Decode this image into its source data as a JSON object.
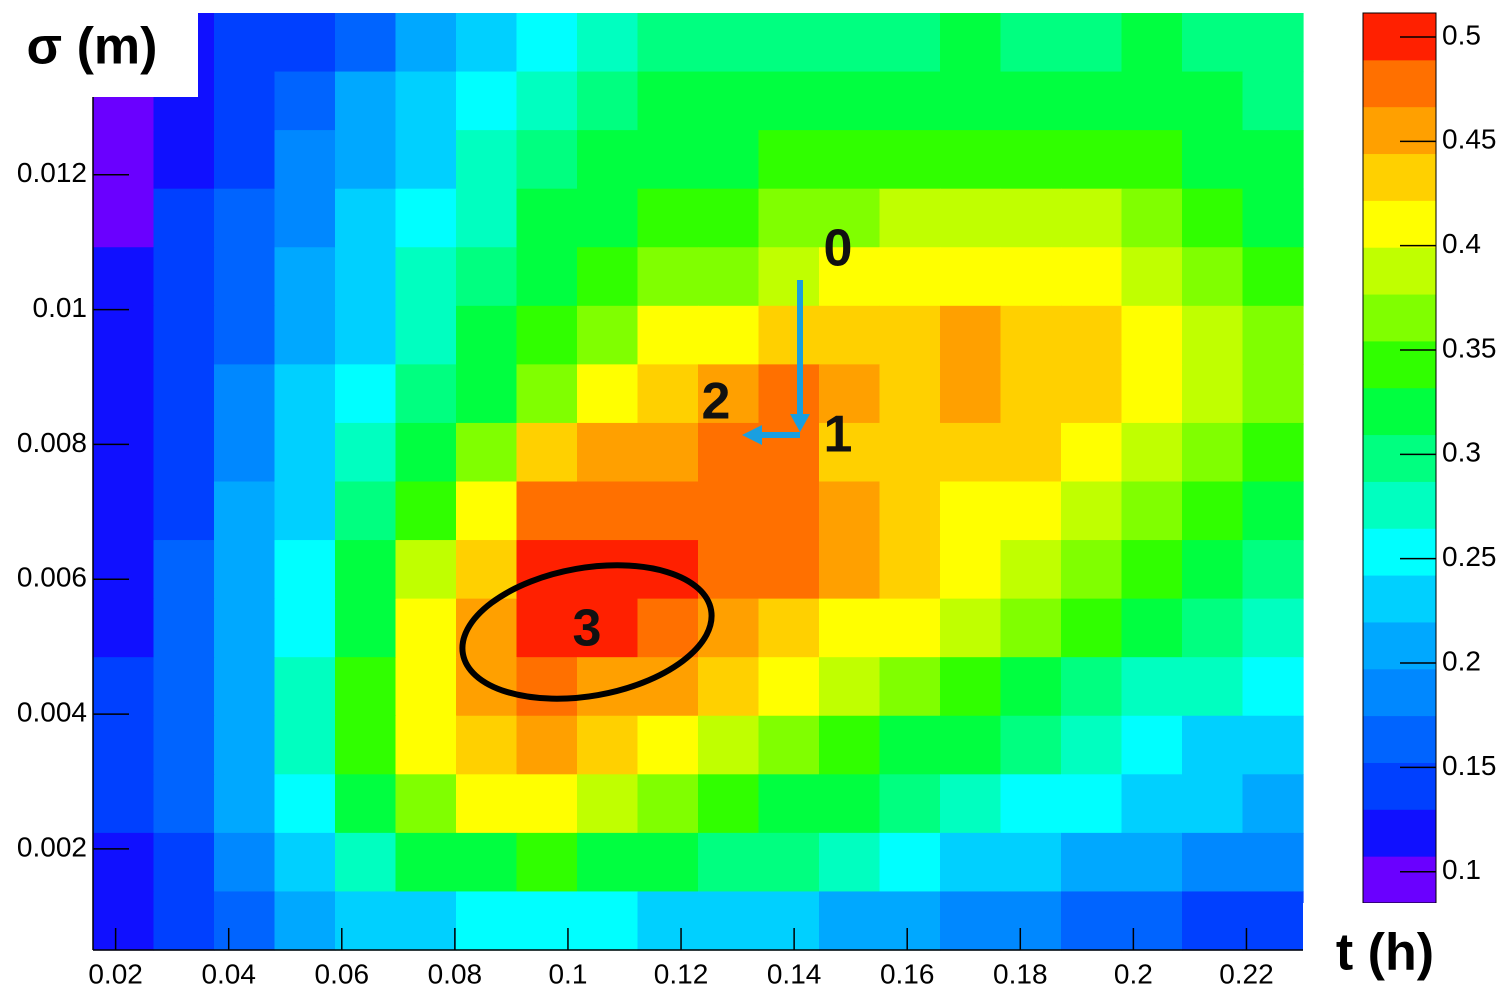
{
  "chart_data": {
    "type": "heatmap",
    "x_label": "t (h)",
    "y_label": "σ (m)",
    "xlim": [
      0.016,
      0.23
    ],
    "ylim": [
      0.0005,
      0.0144
    ],
    "zlim": [
      0.085,
      0.5115
    ],
    "xticks": [
      0.02,
      0.04,
      0.06,
      0.08,
      0.1,
      0.12,
      0.14,
      0.16,
      0.18,
      0.2,
      0.22
    ],
    "yticks": [
      0.002,
      0.004,
      0.006,
      0.008,
      0.01,
      0.012
    ],
    "zticks": [
      0.1,
      0.15,
      0.2,
      0.25,
      0.3,
      0.35,
      0.4,
      0.45,
      0.5
    ],
    "palette": [
      "#6a00ff",
      "#1010ff",
      "#0040ff",
      "#0064ff",
      "#0088ff",
      "#00a8ff",
      "#00d0ff",
      "#00ffff",
      "#00ffc0",
      "#00ff80",
      "#00ff40",
      "#30ff00",
      "#80ff00",
      "#c0ff00",
      "#ffff00",
      "#ffd000",
      "#ffa000",
      "#ff7000",
      "#ff2000"
    ],
    "z": [
      [
        0.11,
        0.12,
        0.13,
        0.15,
        0.17,
        0.2,
        0.22,
        0.25,
        0.27,
        0.29,
        0.3,
        0.3,
        0.3,
        0.3,
        0.31,
        0.3,
        0.3,
        0.31,
        0.3,
        0.29
      ],
      [
        0.1,
        0.12,
        0.14,
        0.17,
        0.2,
        0.23,
        0.26,
        0.28,
        0.3,
        0.31,
        0.31,
        0.32,
        0.32,
        0.32,
        0.32,
        0.33,
        0.32,
        0.32,
        0.31,
        0.3
      ],
      [
        0.1,
        0.12,
        0.15,
        0.18,
        0.21,
        0.24,
        0.27,
        0.3,
        0.31,
        0.32,
        0.33,
        0.34,
        0.35,
        0.35,
        0.35,
        0.35,
        0.34,
        0.34,
        0.33,
        0.31
      ],
      [
        0.1,
        0.13,
        0.16,
        0.19,
        0.22,
        0.25,
        0.28,
        0.31,
        0.33,
        0.34,
        0.35,
        0.36,
        0.37,
        0.38,
        0.39,
        0.38,
        0.38,
        0.37,
        0.35,
        0.33
      ],
      [
        0.11,
        0.13,
        0.17,
        0.2,
        0.23,
        0.27,
        0.3,
        0.33,
        0.35,
        0.36,
        0.37,
        0.38,
        0.4,
        0.41,
        0.41,
        0.41,
        0.4,
        0.39,
        0.37,
        0.34
      ],
      [
        0.11,
        0.14,
        0.17,
        0.21,
        0.24,
        0.28,
        0.31,
        0.34,
        0.37,
        0.4,
        0.42,
        0.43,
        0.44,
        0.44,
        0.45,
        0.44,
        0.43,
        0.42,
        0.39,
        0.36
      ],
      [
        0.11,
        0.14,
        0.18,
        0.22,
        0.26,
        0.29,
        0.33,
        0.37,
        0.42,
        0.44,
        0.46,
        0.47,
        0.45,
        0.44,
        0.45,
        0.44,
        0.43,
        0.41,
        0.39,
        0.36
      ],
      [
        0.12,
        0.15,
        0.19,
        0.23,
        0.27,
        0.31,
        0.36,
        0.43,
        0.45,
        0.46,
        0.48,
        0.47,
        0.44,
        0.43,
        0.43,
        0.43,
        0.41,
        0.39,
        0.37,
        0.34
      ],
      [
        0.12,
        0.15,
        0.2,
        0.24,
        0.29,
        0.34,
        0.42,
        0.47,
        0.48,
        0.48,
        0.48,
        0.47,
        0.46,
        0.43,
        0.42,
        0.41,
        0.39,
        0.37,
        0.34,
        0.32
      ],
      [
        0.12,
        0.16,
        0.21,
        0.25,
        0.31,
        0.38,
        0.44,
        0.49,
        0.5,
        0.49,
        0.48,
        0.47,
        0.45,
        0.43,
        0.41,
        0.39,
        0.37,
        0.34,
        0.32,
        0.3
      ],
      [
        0.12,
        0.16,
        0.21,
        0.26,
        0.33,
        0.4,
        0.46,
        0.5,
        0.5,
        0.48,
        0.46,
        0.44,
        0.42,
        0.4,
        0.38,
        0.36,
        0.34,
        0.32,
        0.3,
        0.28
      ],
      [
        0.13,
        0.17,
        0.21,
        0.27,
        0.34,
        0.42,
        0.46,
        0.47,
        0.46,
        0.45,
        0.43,
        0.41,
        0.38,
        0.36,
        0.34,
        0.32,
        0.3,
        0.28,
        0.27,
        0.25
      ],
      [
        0.13,
        0.17,
        0.21,
        0.27,
        0.34,
        0.41,
        0.44,
        0.45,
        0.43,
        0.41,
        0.39,
        0.37,
        0.35,
        0.33,
        0.31,
        0.29,
        0.27,
        0.26,
        0.24,
        0.23
      ],
      [
        0.13,
        0.16,
        0.2,
        0.26,
        0.32,
        0.37,
        0.4,
        0.4,
        0.39,
        0.37,
        0.35,
        0.33,
        0.31,
        0.29,
        0.28,
        0.26,
        0.25,
        0.23,
        0.22,
        0.2
      ],
      [
        0.12,
        0.15,
        0.19,
        0.24,
        0.28,
        0.31,
        0.33,
        0.34,
        0.33,
        0.32,
        0.3,
        0.29,
        0.27,
        0.26,
        0.24,
        0.23,
        0.21,
        0.2,
        0.19,
        0.18
      ],
      [
        0.11,
        0.13,
        0.17,
        0.2,
        0.22,
        0.24,
        0.25,
        0.25,
        0.25,
        0.24,
        0.23,
        0.22,
        0.21,
        0.2,
        0.19,
        0.18,
        0.17,
        0.16,
        0.15,
        0.14
      ]
    ],
    "annotations": [
      "0",
      "1",
      "2",
      "3"
    ]
  }
}
